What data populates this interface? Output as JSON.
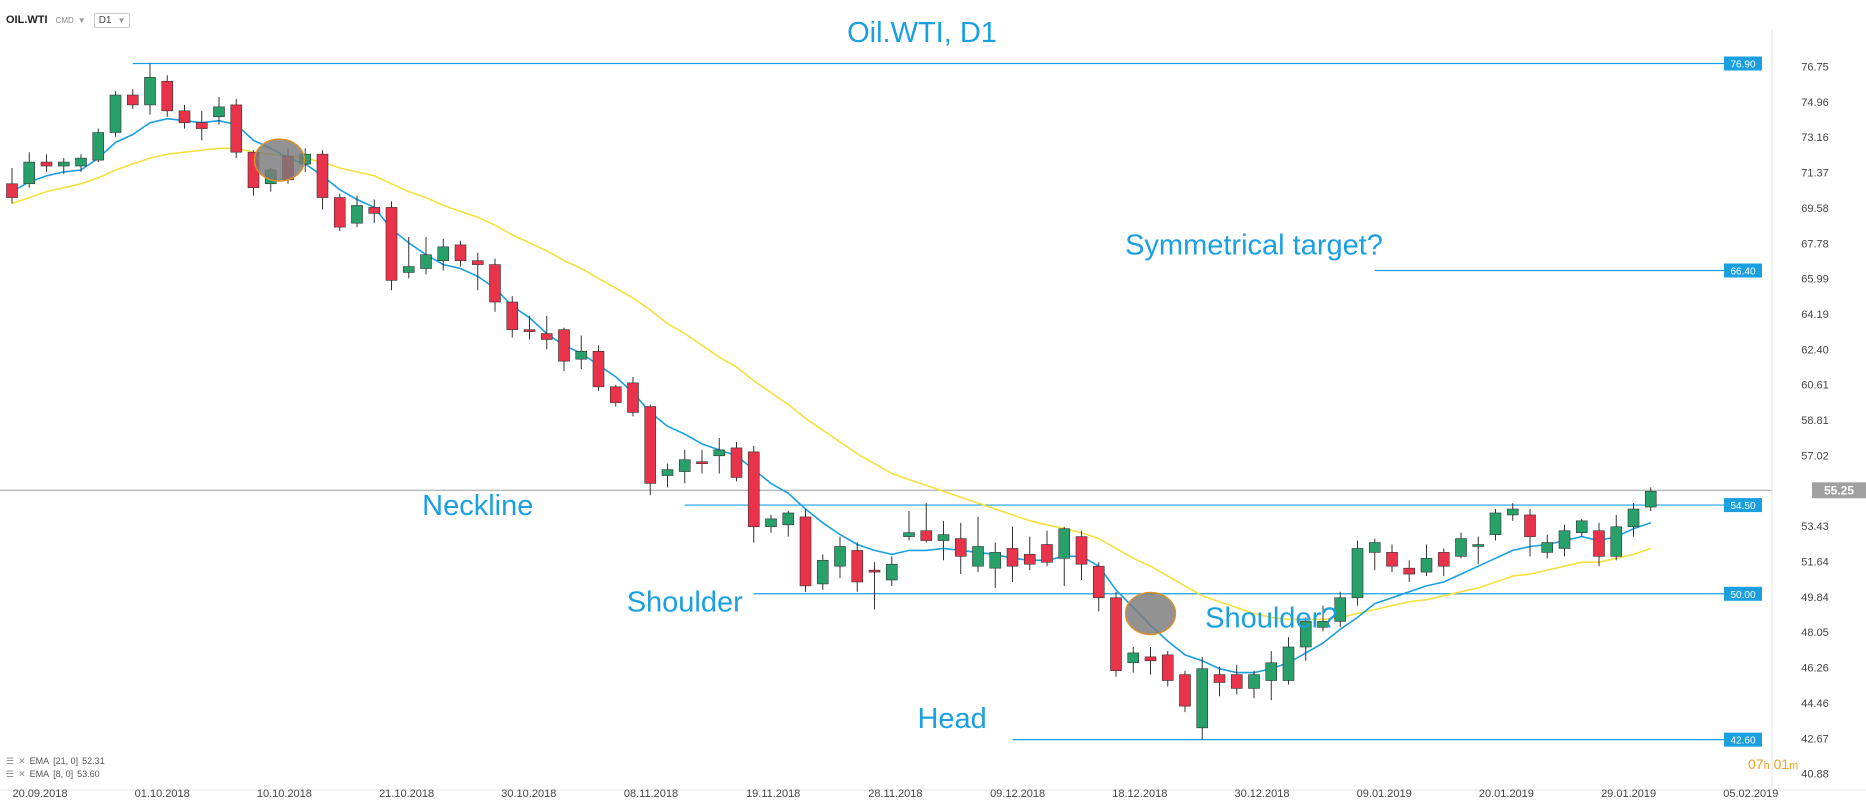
{
  "header": {
    "symbol": "OIL.WTI",
    "type": "CMD",
    "timeframe": "D1"
  },
  "legend": [
    {
      "label": "EMA",
      "params": "[21, 0]",
      "value": "52.31"
    },
    {
      "label": "EMA",
      "params": "[8, 0]",
      "value": "53.60"
    }
  ],
  "timer": {
    "hours": "07",
    "h_unit": "h",
    "minutes": "01",
    "m_unit": "m"
  },
  "colors": {
    "bull": "#27a06a",
    "bear": "#e8334a",
    "ema8": "#1a9fe0",
    "ema21": "#f5e040",
    "level": "#1a9fe0",
    "annotation": "#1a9fe0",
    "current_price": "#a0a0a0",
    "marker": "#7a7a7a"
  },
  "chart_data": {
    "type": "candlestick",
    "title": "Oil.WTI, D1",
    "y_ticks": [
      "76.75",
      "74.96",
      "73.16",
      "71.37",
      "69.58",
      "67.78",
      "65.99",
      "64.19",
      "62.40",
      "60.61",
      "58.81",
      "57.02",
      "53.43",
      "51.64",
      "49.84",
      "48.05",
      "46.26",
      "44.46",
      "42.67",
      "40.88"
    ],
    "x_ticks": [
      "20.09.2018",
      "01.10.2018",
      "10.10.2018",
      "21.10.2018",
      "30.10.2018",
      "08.11.2018",
      "19.11.2018",
      "28.11.2018",
      "09.12.2018",
      "18.12.2018",
      "30.12.2018",
      "09.01.2019",
      "20.01.2019",
      "29.01.2019",
      "05.02.2019"
    ],
    "y_range": [
      40.3,
      78.6
    ],
    "current_price": {
      "value": 55.25,
      "label": "55.25"
    },
    "levels": [
      {
        "value": 76.9,
        "label": "76.90",
        "from_index": 7
      },
      {
        "value": 66.4,
        "label": "66.40",
        "from_index": 79
      },
      {
        "value": 54.5,
        "label": "54.50",
        "from_index": 39
      },
      {
        "value": 50.0,
        "label": "50.00",
        "from_index": 43
      },
      {
        "value": 42.6,
        "label": "42.60",
        "from_index": 58
      }
    ],
    "annotations": [
      {
        "text": "Neckline",
        "x_index": 27,
        "y": 54.0
      },
      {
        "text": "Shoulder",
        "x_index": 39,
        "y": 49.1
      },
      {
        "text": "Head",
        "x_index": 54.5,
        "y": 43.2
      },
      {
        "text": "Shoulder?",
        "x_index": 73,
        "y": 48.3
      },
      {
        "text": "Symmetrical target?",
        "x_index": 72,
        "y": 67.2
      }
    ],
    "markers": [
      {
        "x_index": 15.5,
        "y": 72.0
      },
      {
        "x_index": 66,
        "y": 49.0
      }
    ],
    "ohlc": [
      [
        70.8,
        71.6,
        69.8,
        70.1
      ],
      [
        70.8,
        72.4,
        70.6,
        71.9
      ],
      [
        71.9,
        72.3,
        71.4,
        71.7
      ],
      [
        71.7,
        72.1,
        71.3,
        71.9
      ],
      [
        71.7,
        72.3,
        71.4,
        72.1
      ],
      [
        72.0,
        73.6,
        71.9,
        73.4
      ],
      [
        73.4,
        75.5,
        73.2,
        75.3
      ],
      [
        75.3,
        75.6,
        74.6,
        74.8
      ],
      [
        74.8,
        76.9,
        74.3,
        76.2
      ],
      [
        76.0,
        76.3,
        74.2,
        74.5
      ],
      [
        74.5,
        74.8,
        73.6,
        73.9
      ],
      [
        73.9,
        74.5,
        73.0,
        73.6
      ],
      [
        74.2,
        75.2,
        73.8,
        74.7
      ],
      [
        74.8,
        75.1,
        72.1,
        72.4
      ],
      [
        72.4,
        72.5,
        70.2,
        70.6
      ],
      [
        70.8,
        71.6,
        70.4,
        71.5
      ],
      [
        72.2,
        72.6,
        70.8,
        71.0
      ],
      [
        71.8,
        72.6,
        71.4,
        72.3
      ],
      [
        72.3,
        72.5,
        69.5,
        70.1
      ],
      [
        70.1,
        70.3,
        68.4,
        68.6
      ],
      [
        68.8,
        70.2,
        68.6,
        69.7
      ],
      [
        69.6,
        70.0,
        68.8,
        69.3
      ],
      [
        69.6,
        69.9,
        65.4,
        65.9
      ],
      [
        66.3,
        68.1,
        66.0,
        66.6
      ],
      [
        66.5,
        68.1,
        66.2,
        67.2
      ],
      [
        66.9,
        68.0,
        66.4,
        67.6
      ],
      [
        67.7,
        67.9,
        66.6,
        66.9
      ],
      [
        66.9,
        67.3,
        65.4,
        66.7
      ],
      [
        66.7,
        67.0,
        64.3,
        64.8
      ],
      [
        64.8,
        65.1,
        63.0,
        63.4
      ],
      [
        63.4,
        64.1,
        62.9,
        63.3
      ],
      [
        63.2,
        64.1,
        62.4,
        62.9
      ],
      [
        63.4,
        63.5,
        61.3,
        61.8
      ],
      [
        61.9,
        63.1,
        61.4,
        62.3
      ],
      [
        62.3,
        62.6,
        60.3,
        60.5
      ],
      [
        60.5,
        60.6,
        59.5,
        59.7
      ],
      [
        60.7,
        61.0,
        59.0,
        59.2
      ],
      [
        59.5,
        59.6,
        55.0,
        55.6
      ],
      [
        56.0,
        56.6,
        55.4,
        56.3
      ],
      [
        56.2,
        57.3,
        55.6,
        56.8
      ],
      [
        56.7,
        57.3,
        56.1,
        56.6
      ],
      [
        57.0,
        57.9,
        56.1,
        57.3
      ],
      [
        57.4,
        57.7,
        55.7,
        55.9
      ],
      [
        57.2,
        57.5,
        52.6,
        53.4
      ],
      [
        53.4,
        54.0,
        53.1,
        53.8
      ],
      [
        53.5,
        54.2,
        52.9,
        54.1
      ],
      [
        53.9,
        54.3,
        50.1,
        50.4
      ],
      [
        50.5,
        52.0,
        50.2,
        51.7
      ],
      [
        51.4,
        52.9,
        50.8,
        52.4
      ],
      [
        52.2,
        52.6,
        50.1,
        50.6
      ],
      [
        51.2,
        51.6,
        49.2,
        51.1
      ],
      [
        50.7,
        51.9,
        50.4,
        51.5
      ],
      [
        52.9,
        54.2,
        52.7,
        53.1
      ],
      [
        53.2,
        54.6,
        52.6,
        52.7
      ],
      [
        52.7,
        53.7,
        51.7,
        53.0
      ],
      [
        52.8,
        53.6,
        51.0,
        51.9
      ],
      [
        51.4,
        53.9,
        51.1,
        52.4
      ],
      [
        51.3,
        52.6,
        50.3,
        52.1
      ],
      [
        52.3,
        53.4,
        50.6,
        51.4
      ],
      [
        52.0,
        52.9,
        51.2,
        51.5
      ],
      [
        52.5,
        53.2,
        51.4,
        51.6
      ],
      [
        51.8,
        53.4,
        50.4,
        53.3
      ],
      [
        52.9,
        53.2,
        50.7,
        51.5
      ],
      [
        51.4,
        51.6,
        49.1,
        49.8
      ],
      [
        49.8,
        50.1,
        45.8,
        46.1
      ],
      [
        46.5,
        47.3,
        46.0,
        47.0
      ],
      [
        46.8,
        47.3,
        45.9,
        46.6
      ],
      [
        46.9,
        47.1,
        45.3,
        45.6
      ],
      [
        45.9,
        46.1,
        44.0,
        44.3
      ],
      [
        43.2,
        46.8,
        42.6,
        46.2
      ],
      [
        45.9,
        46.3,
        44.8,
        45.5
      ],
      [
        45.9,
        46.4,
        44.9,
        45.2
      ],
      [
        45.2,
        46.1,
        44.7,
        45.9
      ],
      [
        45.6,
        47.1,
        44.6,
        46.5
      ],
      [
        45.6,
        47.8,
        45.4,
        47.3
      ],
      [
        47.3,
        48.8,
        46.6,
        48.6
      ],
      [
        48.3,
        49.4,
        48.1,
        48.6
      ],
      [
        48.6,
        50.1,
        48.3,
        49.8
      ],
      [
        49.8,
        52.7,
        49.4,
        52.3
      ],
      [
        52.1,
        52.8,
        51.2,
        52.6
      ],
      [
        52.1,
        52.5,
        51.1,
        51.4
      ],
      [
        51.3,
        51.7,
        50.6,
        51.0
      ],
      [
        51.1,
        52.5,
        50.9,
        51.8
      ],
      [
        52.1,
        52.3,
        50.9,
        51.4
      ],
      [
        51.9,
        53.1,
        51.8,
        52.8
      ],
      [
        52.4,
        52.9,
        51.5,
        52.5
      ],
      [
        53.0,
        54.3,
        52.7,
        54.1
      ],
      [
        54.0,
        54.6,
        53.7,
        54.3
      ],
      [
        54.0,
        54.3,
        51.9,
        52.9
      ],
      [
        52.1,
        53.0,
        51.8,
        52.6
      ],
      [
        52.3,
        53.5,
        51.9,
        53.2
      ],
      [
        53.1,
        53.8,
        52.9,
        53.7
      ],
      [
        53.2,
        53.6,
        51.4,
        51.9
      ],
      [
        51.9,
        54.0,
        51.7,
        53.4
      ],
      [
        53.4,
        54.6,
        52.9,
        54.3
      ],
      [
        54.4,
        55.4,
        54.2,
        55.2
      ]
    ],
    "ema8": [
      70.4,
      70.9,
      71.2,
      71.4,
      71.5,
      72.1,
      72.9,
      73.3,
      73.9,
      74.1,
      74.0,
      73.9,
      74.0,
      73.8,
      73.0,
      72.6,
      72.1,
      71.8,
      71.2,
      70.5,
      70.0,
      69.6,
      68.5,
      67.8,
      67.2,
      66.7,
      66.5,
      66.1,
      65.5,
      64.6,
      64.0,
      63.2,
      62.6,
      62.2,
      61.6,
      61.0,
      60.2,
      59.2,
      58.5,
      58.1,
      57.6,
      57.3,
      57.0,
      56.3,
      55.6,
      55.1,
      54.3,
      53.6,
      53.0,
      52.5,
      52.2,
      52.0,
      52.2,
      52.2,
      52.3,
      52.2,
      52.1,
      52.0,
      51.8,
      51.7,
      51.7,
      51.9,
      51.9,
      51.4,
      50.2,
      49.3,
      48.4,
      47.6,
      46.9,
      46.6,
      46.2,
      46.0,
      46.0,
      46.2,
      46.5,
      47.0,
      47.5,
      48.2,
      48.8,
      49.5,
      49.8,
      50.1,
      50.4,
      50.6,
      51.0,
      51.4,
      51.8,
      52.2,
      52.4,
      52.5,
      52.7,
      52.9,
      52.7,
      52.9,
      53.3,
      53.6
    ],
    "ema21": [
      69.8,
      70.1,
      70.4,
      70.6,
      70.8,
      71.1,
      71.5,
      71.8,
      72.1,
      72.3,
      72.4,
      72.5,
      72.6,
      72.6,
      72.4,
      72.3,
      72.2,
      72.1,
      71.9,
      71.6,
      71.4,
      71.2,
      70.8,
      70.4,
      70.1,
      69.7,
      69.4,
      69.1,
      68.7,
      68.2,
      67.8,
      67.4,
      66.9,
      66.5,
      66.0,
      65.5,
      65.0,
      64.4,
      63.7,
      63.2,
      62.6,
      62.0,
      61.5,
      60.8,
      60.2,
      59.6,
      58.9,
      58.3,
      57.7,
      57.1,
      56.6,
      56.1,
      55.8,
      55.5,
      55.2,
      54.9,
      54.6,
      54.3,
      54.0,
      53.7,
      53.5,
      53.3,
      53.1,
      52.8,
      52.3,
      51.8,
      51.4,
      50.9,
      50.4,
      49.9,
      49.6,
      49.3,
      49.0,
      48.8,
      48.7,
      48.7,
      48.7,
      48.8,
      49.0,
      49.2,
      49.4,
      49.6,
      49.7,
      49.9,
      50.1,
      50.3,
      50.6,
      50.9,
      51.0,
      51.2,
      51.4,
      51.6,
      51.6,
      51.8,
      52.0,
      52.3
    ]
  }
}
